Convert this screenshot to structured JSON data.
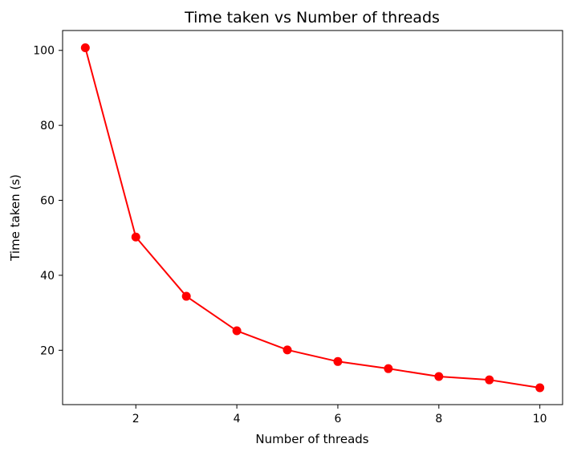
{
  "chart_data": {
    "type": "line",
    "title": "Time taken vs Number of threads",
    "xlabel": "Number of threads",
    "ylabel": "Time taken (s)",
    "x": [
      1,
      2,
      3,
      4,
      5,
      6,
      7,
      8,
      9,
      10
    ],
    "series": [
      {
        "values": [
          100.7,
          50.2,
          34.4,
          25.2,
          20.1,
          17.0,
          15.1,
          13.0,
          12.1,
          10.0
        ],
        "color": "#ff0000"
      }
    ],
    "xlim": [
      0.55,
      10.45
    ],
    "ylim": [
      5.5,
      105.3
    ],
    "xticks": [
      2,
      4,
      6,
      8,
      10
    ],
    "yticks": [
      20,
      40,
      60,
      80,
      100
    ],
    "grid": false,
    "marker": "circle"
  }
}
